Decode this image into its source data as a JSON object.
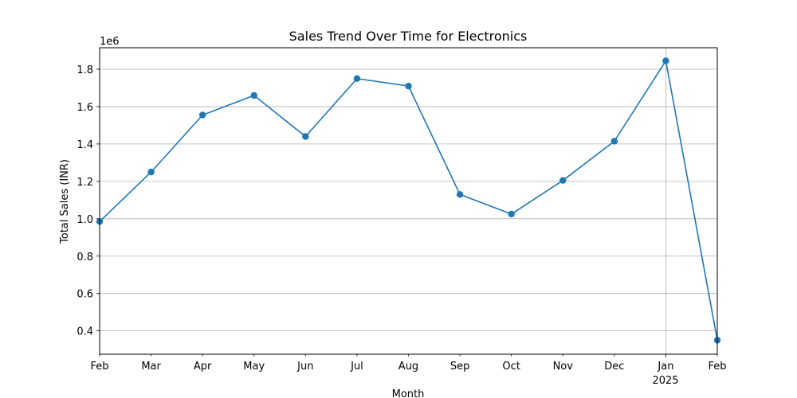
{
  "chart_data": {
    "type": "line",
    "title": "Sales Trend Over Time for Electronics",
    "xlabel": "Month",
    "ylabel": "Total Sales (INR)",
    "y_offset_label": "1e6",
    "y_multiplier": 1000000,
    "x_tick_labels": [
      "Feb",
      "Mar",
      "Apr",
      "May",
      "Jun",
      "Jul",
      "Aug",
      "Sep",
      "Oct",
      "Nov",
      "Dec",
      "Jan",
      "Feb"
    ],
    "x_year_label": "2025",
    "y_ticks": [
      0.4,
      0.6,
      0.8,
      1.0,
      1.2,
      1.4,
      1.6,
      1.8
    ],
    "y_tick_labels": [
      "0.4",
      "0.6",
      "0.8",
      "1.0",
      "1.2",
      "1.4",
      "1.6",
      "1.8"
    ],
    "ylim": [
      0.275,
      1.915
    ],
    "grid": true,
    "line_color": "#1f77b4",
    "series": [
      {
        "x": [
          "2024-02",
          "2024-03",
          "2024-04",
          "2024-05",
          "2024-06",
          "2024-07",
          "2024-08",
          "2024-09",
          "2024-10",
          "2024-11",
          "2024-12",
          "2025-01",
          "2025-02"
        ],
        "values": [
          0.985,
          1.25,
          1.555,
          1.66,
          1.44,
          1.75,
          1.71,
          1.13,
          1.025,
          1.205,
          1.415,
          1.845,
          0.35
        ]
      }
    ]
  }
}
